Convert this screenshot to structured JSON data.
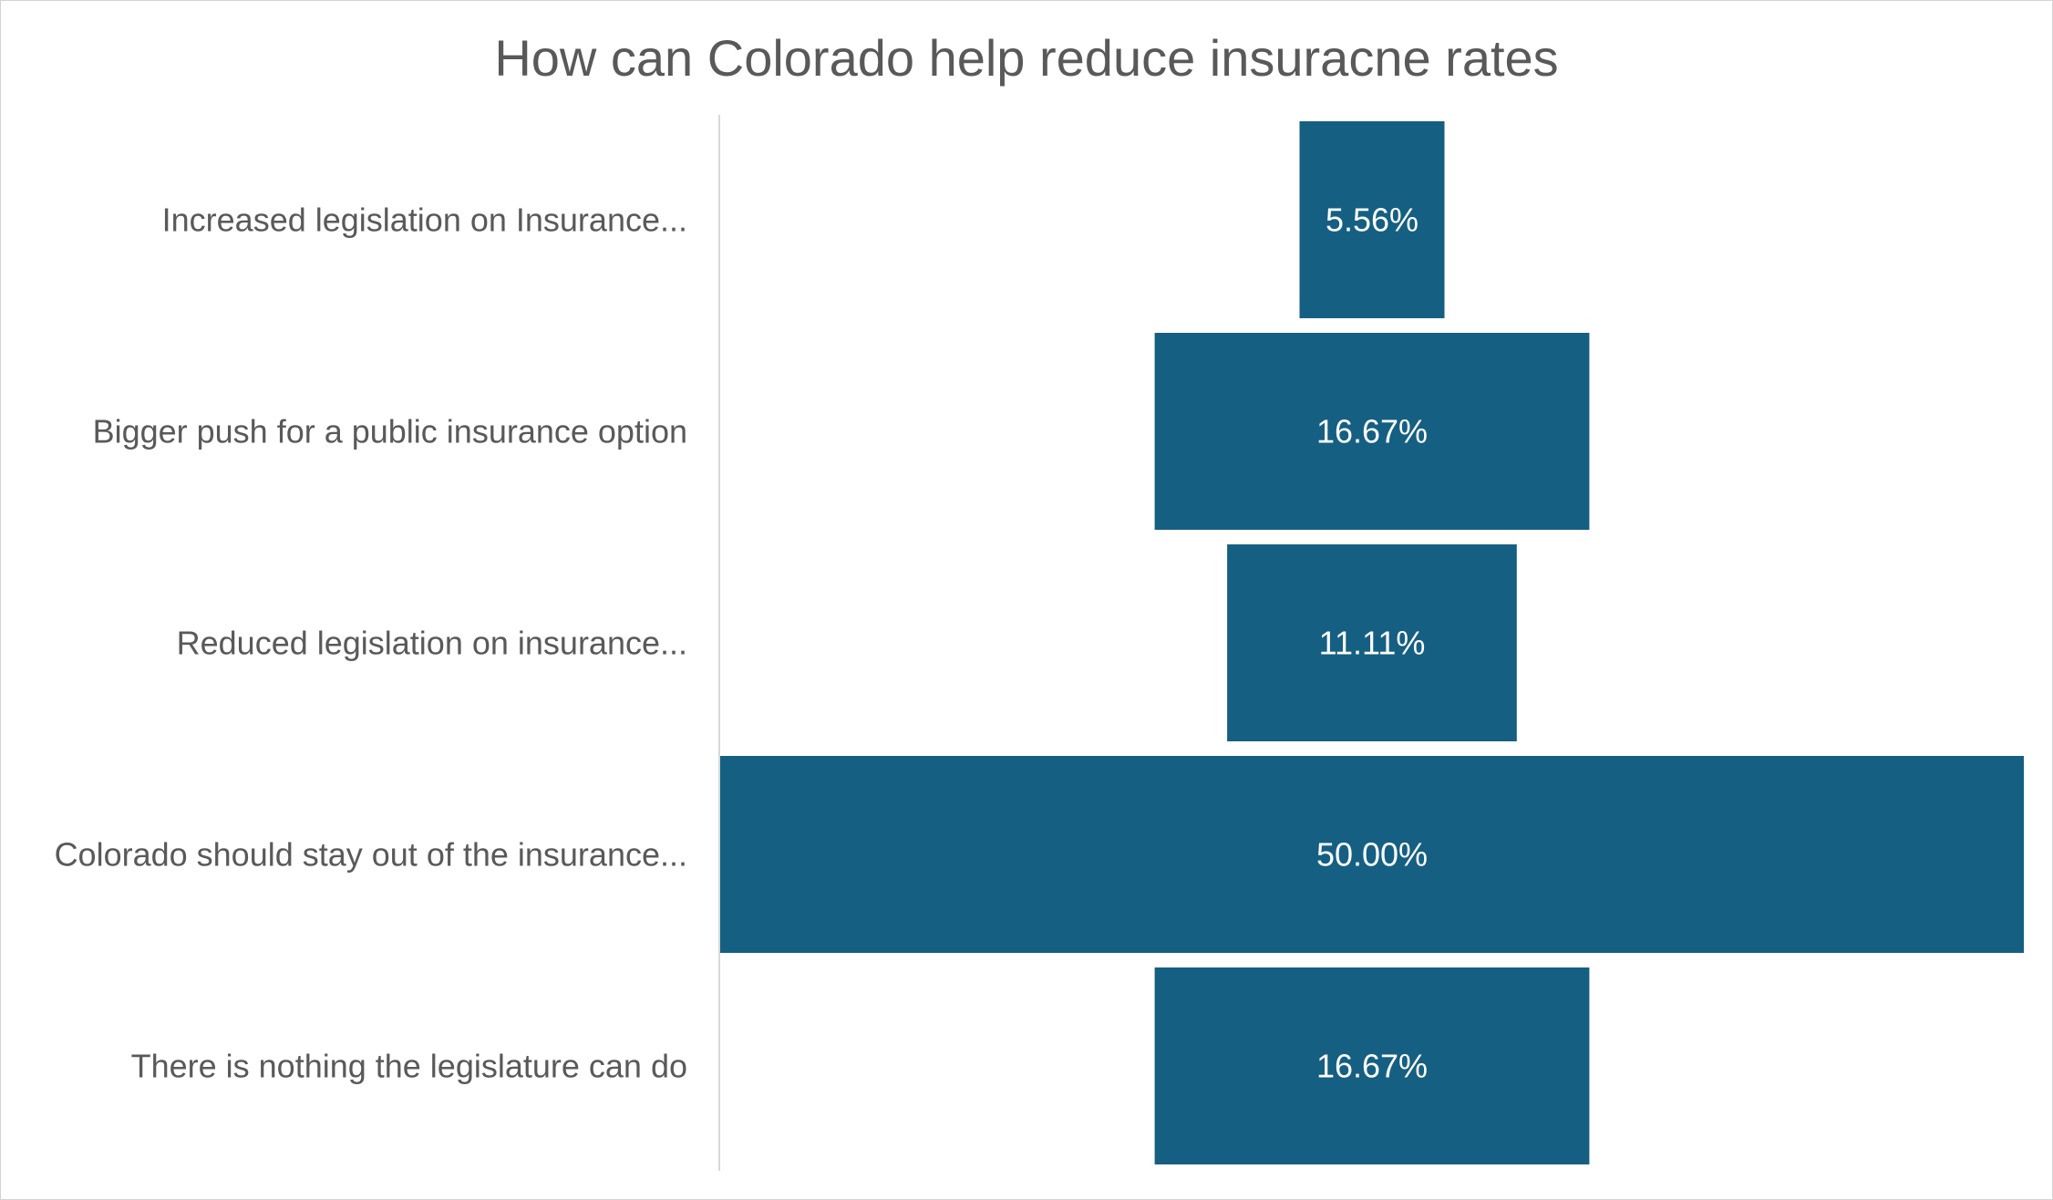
{
  "chart_data": {
    "type": "bar",
    "subtype": "funnel",
    "title": "How can Colorado help reduce insuracne rates",
    "categories": [
      "Increased legislation on Insurance...",
      "Bigger push for a public insurance option",
      "Reduced legislation on insurance...",
      "Colorado should stay out of the insurance...",
      "There is nothing the legislature can do"
    ],
    "values": [
      5.56,
      16.67,
      11.11,
      50.0,
      16.67
    ],
    "data_labels": [
      "5.56%",
      "16.67%",
      "11.11%",
      "50.00%",
      "16.67%"
    ],
    "unit": "%",
    "bar_color": "#155f82",
    "label_color": "#ffffff",
    "category_label_color": "#595959",
    "grid": false,
    "legend": "none"
  }
}
